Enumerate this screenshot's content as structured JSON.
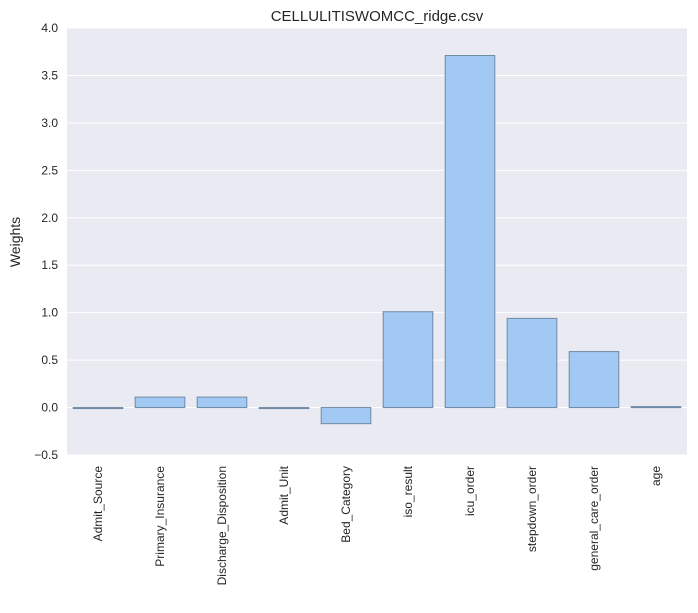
{
  "chart_data": {
    "type": "bar",
    "title": "CELLULITISWOMCC_ridge.csv",
    "xlabel": "",
    "ylabel": "Weights",
    "ylim": [
      -0.5,
      4.0
    ],
    "yticks": [
      "−0.5",
      "0.0",
      "0.5",
      "1.0",
      "1.5",
      "2.0",
      "2.5",
      "3.0",
      "3.5",
      "4.0"
    ],
    "grid": true,
    "categories": [
      "Admit_Source",
      "Primary_Insurance",
      "Discharge_Disposition",
      "Admit_Unit",
      "Bed_Category",
      "iso_result",
      "icu_order",
      "stepdown_order",
      "general_care_order",
      "age"
    ],
    "values": [
      -0.01,
      0.11,
      0.11,
      0.0,
      -0.17,
      1.01,
      3.71,
      0.94,
      0.59,
      0.01
    ]
  },
  "colors": {
    "background": "#eaeaf2",
    "grid": "#ffffff",
    "bar_fill": "#a1c9f4",
    "bar_stroke": "#6f8aa6"
  }
}
